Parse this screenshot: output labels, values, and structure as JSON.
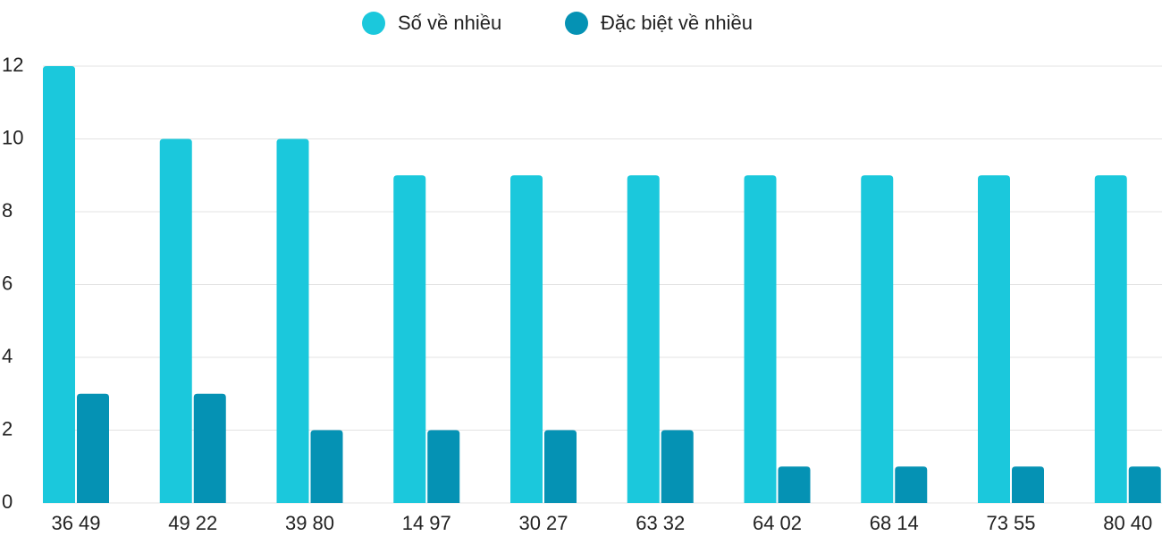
{
  "chart_data": {
    "type": "bar",
    "categories": [
      "36 49",
      "49 22",
      "39 80",
      "14 97",
      "30 27",
      "63 32",
      "64 02",
      "68 14",
      "73 55",
      "80 40"
    ],
    "series": [
      {
        "name": "Số về nhiều",
        "color": "#1bc8dc",
        "values": [
          12,
          10,
          10,
          9,
          9,
          9,
          9,
          9,
          9,
          9
        ]
      },
      {
        "name": "Đặc biệt về nhiều",
        "color": "#0592b4",
        "values": [
          3,
          3,
          2,
          2,
          2,
          2,
          1,
          1,
          1,
          1
        ]
      }
    ],
    "ylim": [
      0,
      12
    ],
    "yticks": [
      0,
      2,
      4,
      6,
      8,
      10,
      12
    ],
    "grid": true,
    "legend": "top"
  }
}
